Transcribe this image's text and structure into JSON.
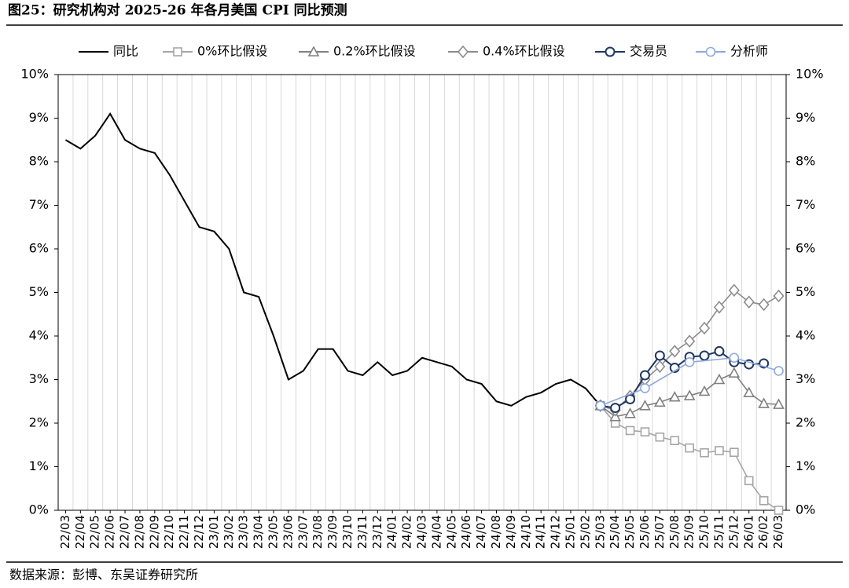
{
  "chart_data": {
    "type": "line",
    "title": "图25：研究机构对 2025-26 年各月美国 CPI 同比预测",
    "source": "数据来源：彭博、东吴证券研究所",
    "categories": [
      "22/03",
      "22/04",
      "22/05",
      "22/06",
      "22/07",
      "22/08",
      "22/09",
      "22/10",
      "22/11",
      "22/12",
      "23/01",
      "23/02",
      "23/03",
      "23/04",
      "23/05",
      "23/06",
      "23/07",
      "23/08",
      "23/09",
      "23/10",
      "23/11",
      "23/12",
      "24/01",
      "24/02",
      "24/03",
      "24/04",
      "24/05",
      "24/06",
      "24/07",
      "24/08",
      "24/09",
      "24/10",
      "24/11",
      "24/12",
      "25/01",
      "25/02",
      "25/03",
      "25/04",
      "25/05",
      "25/06",
      "25/07",
      "25/08",
      "25/09",
      "25/10",
      "25/11",
      "25/12",
      "26/01",
      "26/02",
      "26/03"
    ],
    "series": [
      {
        "name": "同比",
        "color": "#000000",
        "marker": "none",
        "values": [
          8.5,
          8.3,
          8.6,
          9.1,
          8.5,
          8.3,
          8.2,
          7.7,
          7.1,
          6.5,
          6.4,
          6.0,
          5.0,
          4.9,
          4.0,
          3.0,
          3.2,
          3.7,
          3.7,
          3.2,
          3.1,
          3.4,
          3.1,
          3.2,
          3.5,
          3.4,
          3.3,
          3.0,
          2.9,
          2.5,
          2.4,
          2.6,
          2.7,
          2.9,
          3.0,
          2.8,
          2.4,
          null,
          null,
          null,
          null,
          null,
          null,
          null,
          null,
          null,
          null,
          null,
          null
        ]
      },
      {
        "name": "0%环比假设",
        "color": "#a6a6a6",
        "marker": "square",
        "values": [
          null,
          null,
          null,
          null,
          null,
          null,
          null,
          null,
          null,
          null,
          null,
          null,
          null,
          null,
          null,
          null,
          null,
          null,
          null,
          null,
          null,
          null,
          null,
          null,
          null,
          null,
          null,
          null,
          null,
          null,
          null,
          null,
          null,
          null,
          null,
          null,
          2.4,
          2.0,
          1.83,
          1.8,
          1.68,
          1.6,
          1.43,
          1.32,
          1.37,
          1.33,
          0.68,
          0.22,
          0
        ]
      },
      {
        "name": "0.2%环比假设",
        "color": "#808080",
        "marker": "triangle",
        "values": [
          null,
          null,
          null,
          null,
          null,
          null,
          null,
          null,
          null,
          null,
          null,
          null,
          null,
          null,
          null,
          null,
          null,
          null,
          null,
          null,
          null,
          null,
          null,
          null,
          null,
          null,
          null,
          null,
          null,
          null,
          null,
          null,
          null,
          null,
          null,
          null,
          2.4,
          2.15,
          2.22,
          2.4,
          2.48,
          2.6,
          2.63,
          2.73,
          3.0,
          3.15,
          2.7,
          2.45,
          2.43
        ]
      },
      {
        "name": "0.4%环比假设",
        "color": "#8c8c8c",
        "marker": "diamond",
        "values": [
          null,
          null,
          null,
          null,
          null,
          null,
          null,
          null,
          null,
          null,
          null,
          null,
          null,
          null,
          null,
          null,
          null,
          null,
          null,
          null,
          null,
          null,
          null,
          null,
          null,
          null,
          null,
          null,
          null,
          null,
          null,
          null,
          null,
          null,
          null,
          null,
          2.4,
          2.3,
          2.62,
          3.0,
          3.3,
          3.65,
          3.88,
          4.18,
          4.66,
          5.05,
          4.78,
          4.72,
          4.92
        ]
      },
      {
        "name": "交易员",
        "color": "#1f3864",
        "marker": "circle",
        "values": [
          null,
          null,
          null,
          null,
          null,
          null,
          null,
          null,
          null,
          null,
          null,
          null,
          null,
          null,
          null,
          null,
          null,
          null,
          null,
          null,
          null,
          null,
          null,
          null,
          null,
          null,
          null,
          null,
          null,
          null,
          null,
          null,
          null,
          null,
          null,
          null,
          2.4,
          2.35,
          2.55,
          3.1,
          3.55,
          3.27,
          3.52,
          3.55,
          3.65,
          3.4,
          3.35,
          3.37,
          null
        ]
      },
      {
        "name": "分析师",
        "color": "#8eaadb",
        "marker": "circle",
        "x": [
          "25/03",
          "25/06",
          "25/09",
          "25/12",
          "26/03"
        ],
        "values": [
          2.4,
          2.8,
          3.4,
          3.5,
          3.2
        ]
      }
    ],
    "ylim": [
      0,
      10
    ],
    "yticks": [
      {
        "value": 0,
        "label": "0%"
      },
      {
        "value": 1,
        "label": "1%"
      },
      {
        "value": 2,
        "label": "2%"
      },
      {
        "value": 3,
        "label": "3%"
      },
      {
        "value": 4,
        "label": "4%"
      },
      {
        "value": 5,
        "label": "5%"
      },
      {
        "value": 6,
        "label": "6%"
      },
      {
        "value": 7,
        "label": "7%"
      },
      {
        "value": 8,
        "label": "8%"
      },
      {
        "value": 9,
        "label": "9%"
      },
      {
        "value": 10,
        "label": "10%"
      }
    ],
    "y2lim": [
      0,
      10
    ],
    "y2ticks": [
      {
        "value": 0,
        "label": "0%"
      },
      {
        "value": 1,
        "label": "1%"
      },
      {
        "value": 2,
        "label": "2%"
      },
      {
        "value": 3,
        "label": "3%"
      },
      {
        "value": 4,
        "label": "4%"
      },
      {
        "value": 5,
        "label": "5%"
      },
      {
        "value": 6,
        "label": "6%"
      },
      {
        "value": 7,
        "label": "7%"
      },
      {
        "value": 8,
        "label": "8%"
      },
      {
        "value": 9,
        "label": "9%"
      },
      {
        "value": 10,
        "label": "10%"
      }
    ],
    "grid": "x",
    "legend": "top"
  }
}
